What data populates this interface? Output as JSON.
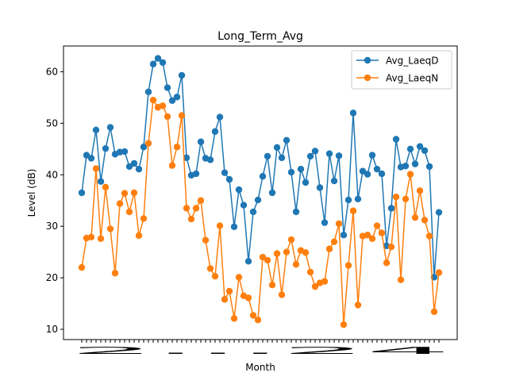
{
  "chart_data": {
    "type": "line",
    "title": "Long_Term_Avg",
    "xlabel": "Month",
    "ylabel": "Level (dB)",
    "ylim": [
      8.0,
      65.0
    ],
    "yticks": [
      10,
      20,
      30,
      40,
      50,
      60
    ],
    "x_tick_label_text": "2...24",
    "legend_location": "top-right",
    "grid": false,
    "series": [
      {
        "name": "Avg_LaeqD",
        "color": "#1f77b4",
        "values": [
          36.5,
          43.8,
          43.2,
          48.7,
          38.7,
          45.1,
          49.2,
          44.0,
          44.4,
          44.5,
          41.6,
          42.2,
          41.1,
          45.4,
          56.1,
          61.5,
          62.6,
          61.8,
          56.9,
          54.4,
          55.1,
          59.3,
          43.3,
          39.9,
          40.2,
          46.4,
          43.2,
          42.9,
          48.4,
          51.2,
          40.4,
          39.1,
          29.9,
          37.1,
          34.1,
          23.2,
          32.8,
          35.1,
          39.7,
          43.6,
          36.5,
          45.3,
          43.3,
          46.7,
          40.5,
          32.8,
          41.1,
          38.5,
          43.6,
          44.6,
          37.5,
          30.7,
          44.1,
          38.8,
          43.7,
          28.3,
          35.1,
          52.0,
          35.3,
          40.7,
          40.1,
          43.8,
          41.1,
          40.2,
          26.2,
          33.5,
          46.9,
          41.5,
          41.7,
          45.0,
          42.1,
          45.5,
          44.7,
          41.6,
          20.1,
          32.7
        ]
      },
      {
        "name": "Avg_LaeqN",
        "color": "#ff7f0e",
        "values": [
          22.0,
          27.7,
          27.9,
          41.2,
          27.6,
          37.6,
          29.5,
          20.9,
          34.4,
          36.4,
          32.8,
          36.5,
          28.2,
          31.5,
          46.1,
          54.5,
          53.1,
          53.4,
          51.3,
          41.8,
          45.4,
          51.5,
          33.5,
          31.4,
          33.5,
          35.0,
          27.3,
          21.8,
          20.3,
          30.1,
          15.8,
          17.4,
          12.1,
          20.1,
          16.5,
          16.1,
          12.7,
          11.8,
          24.0,
          23.4,
          18.6,
          24.7,
          16.7,
          25.0,
          27.4,
          22.6,
          25.3,
          24.9,
          21.1,
          18.3,
          19.0,
          19.3,
          25.6,
          27.0,
          30.5,
          10.9,
          22.4,
          33.0,
          14.7,
          28.1,
          28.3,
          27.6,
          30.1,
          28.7,
          22.9,
          26.0,
          35.7,
          19.6,
          35.3,
          40.1,
          31.7,
          36.9,
          31.2,
          28.1,
          13.4,
          21.0
        ]
      }
    ]
  }
}
